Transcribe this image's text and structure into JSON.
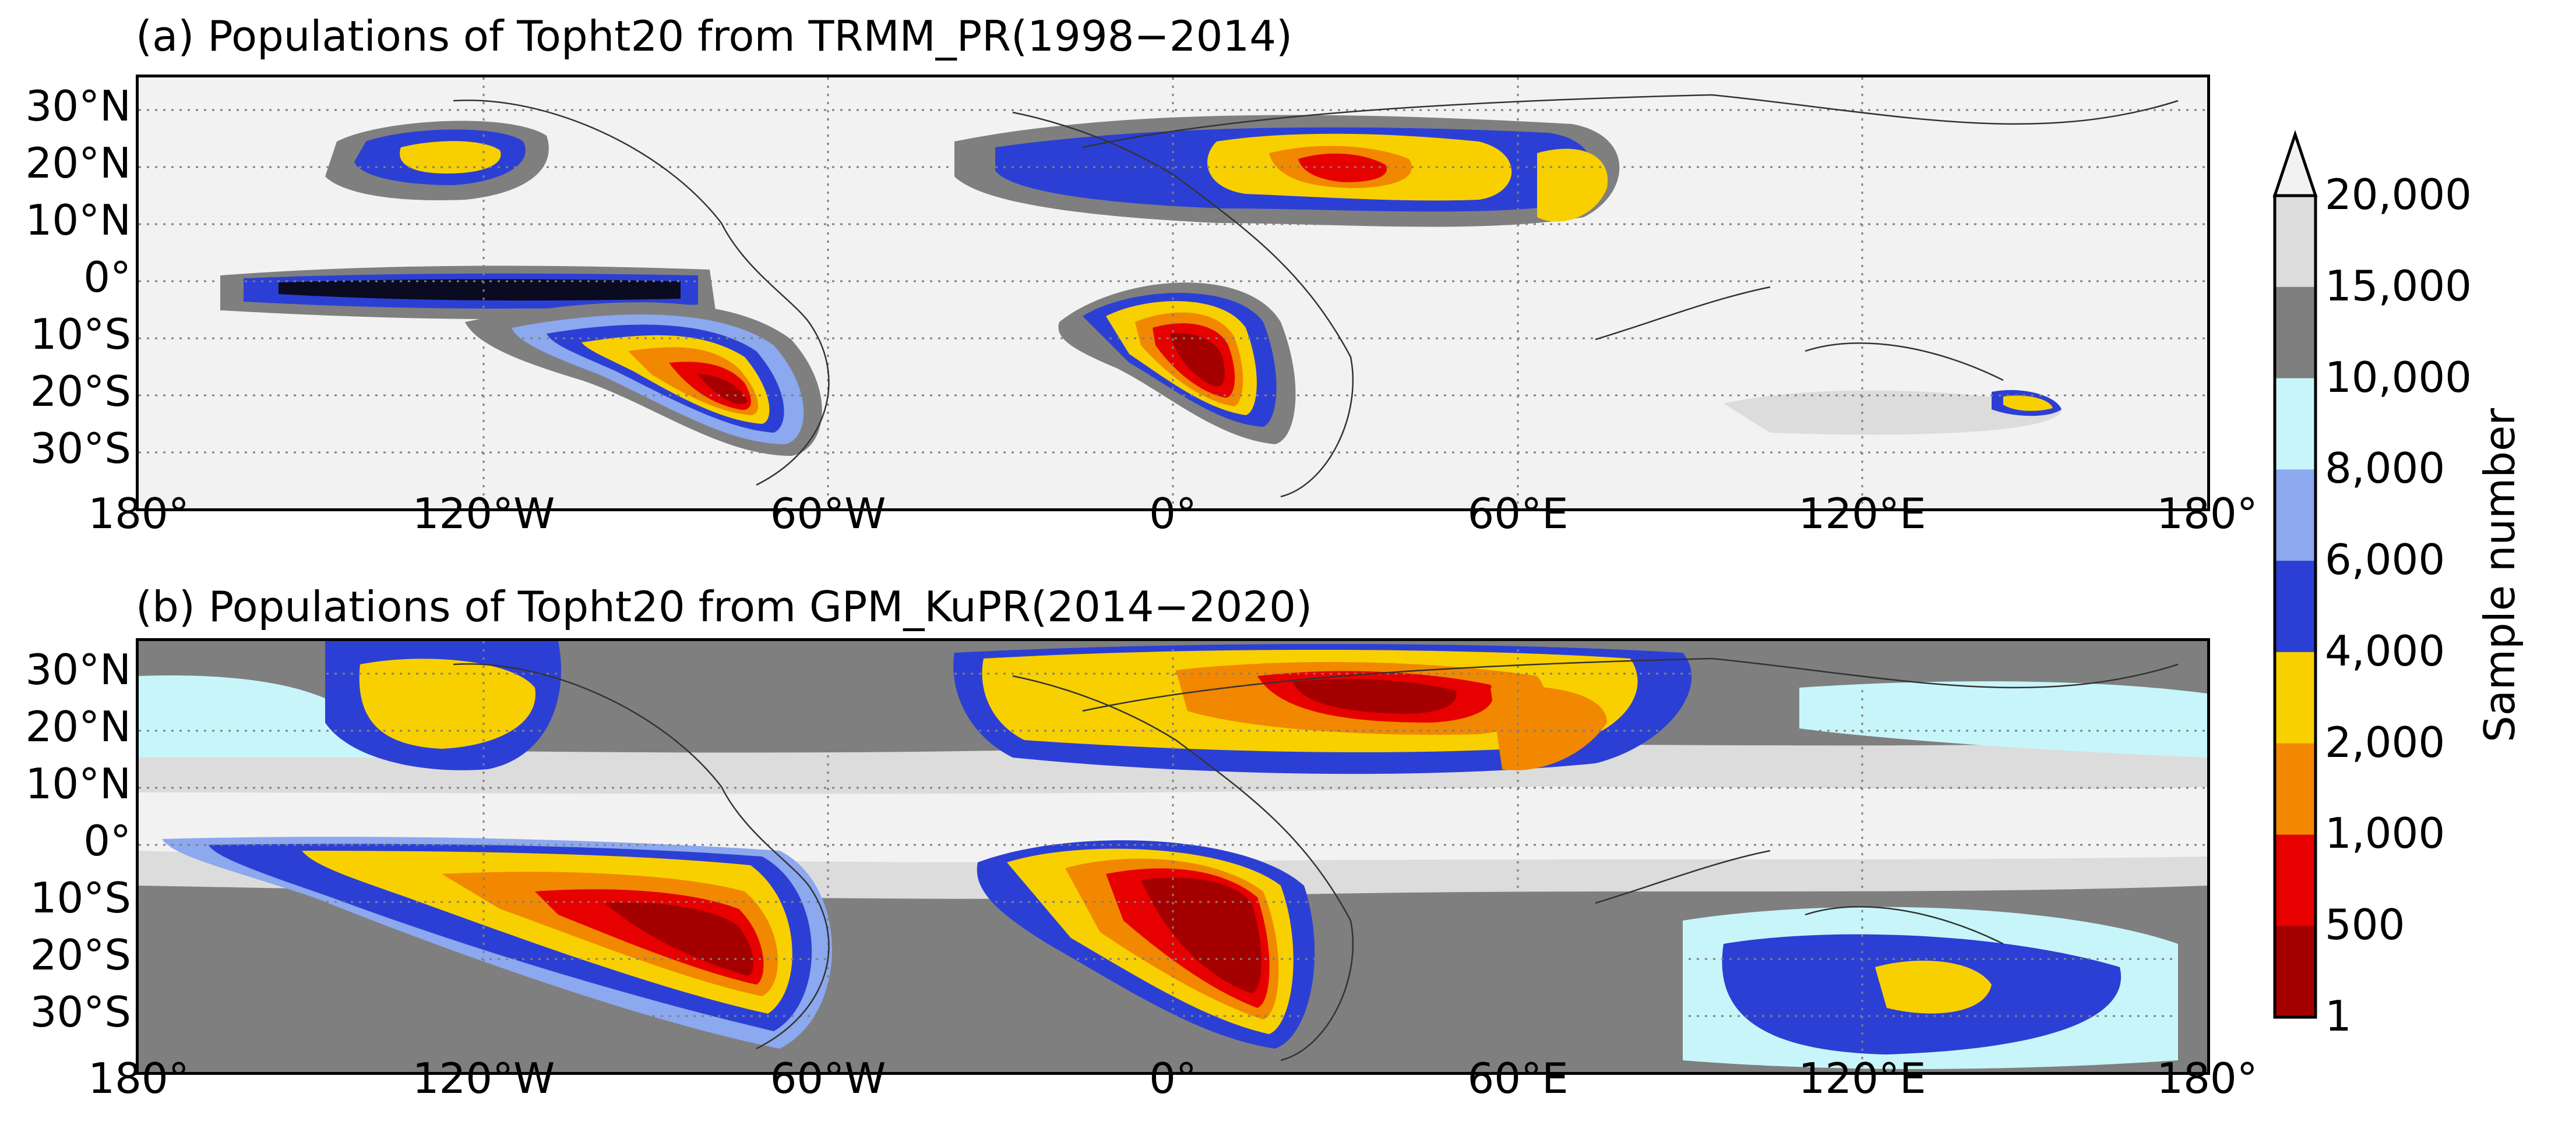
{
  "panels": [
    {
      "title": "(a) Populations of Topht20 from TRMM_PR(1998−2014)"
    },
    {
      "title": "(b) Populations of Topht20 from GPM_KuPR(2014−2020)"
    }
  ],
  "lat_ticks": [
    "30°N",
    "20°N",
    "10°N",
    "0°",
    "10°S",
    "20°S",
    "30°S"
  ],
  "lon_ticks": [
    "180°",
    "120°W",
    "60°W",
    "0°",
    "60°E",
    "120°E",
    "180°"
  ],
  "colorbar": {
    "title": "Sample number",
    "levels": [
      "20,000",
      "15,000",
      "10,000",
      "8,000",
      "6,000",
      "4,000",
      "2,000",
      "1,000",
      "500",
      "1"
    ],
    "colors": [
      "#dcdcdc",
      "#7f7f7f",
      "#c8f5fa",
      "#8ca8ee",
      "#2c3fd4",
      "#f8d000",
      "#f18800",
      "#e60000",
      "#a50000"
    ],
    "extend": "max"
  },
  "colors": {
    "background": "#f2f2f2",
    "grid": "#808080",
    "missing": "#222222"
  }
}
